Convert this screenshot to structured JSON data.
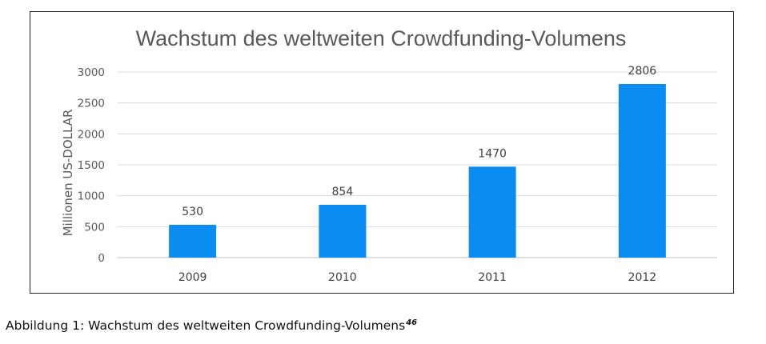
{
  "colors": {
    "bar": "#0a8cf0",
    "grid": "#d9d9d9",
    "axis": "#bfbfbf"
  },
  "chart_data": {
    "type": "bar",
    "title": "Wachstum des weltweiten Crowdfunding-Volumens",
    "xlabel": "",
    "ylabel": "Millionen US-DOLLAR",
    "categories": [
      "2009",
      "2010",
      "2011",
      "2012"
    ],
    "values": [
      530,
      854,
      1470,
      2806
    ],
    "data_labels": [
      "530",
      "854",
      "1470",
      "2806"
    ],
    "ylim": [
      0,
      3000
    ],
    "yticks": [
      0,
      500,
      1000,
      1500,
      2000,
      2500,
      3000
    ],
    "grid": true,
    "legend": "none"
  },
  "caption": {
    "text": "Abbildung 1: Wachstum des weltweiten Crowdfunding-Volumens",
    "footnote": "46"
  }
}
